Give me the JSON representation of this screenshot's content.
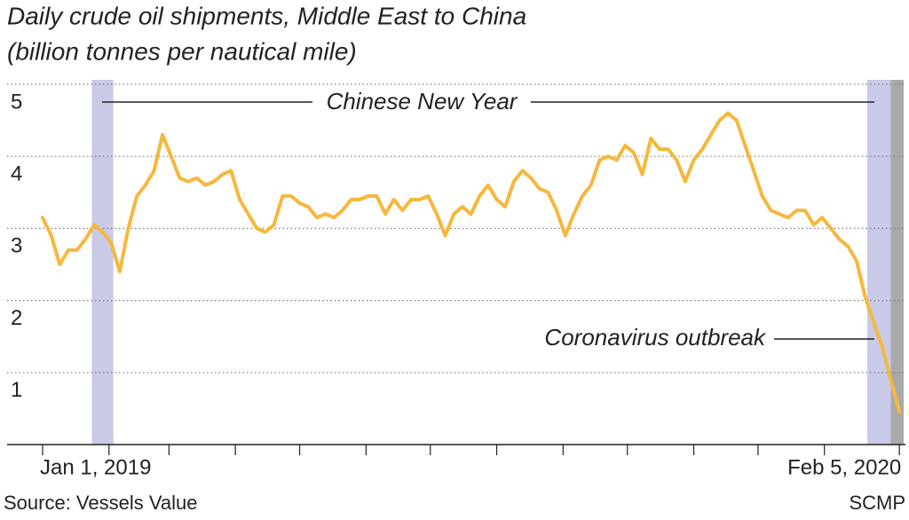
{
  "chart_data": {
    "type": "line",
    "title": "Daily crude oil shipments, Middle East to China",
    "subtitle": "(billion tonnes per nautical mile)",
    "source": "Source: Vessels Value",
    "credit": "SCMP",
    "color": "#f5b83d",
    "grid": true,
    "ylim": [
      0,
      5
    ],
    "yticks": [
      1,
      2,
      3,
      4,
      5
    ],
    "xlim": [
      "2019-01-01",
      "2020-02-07"
    ],
    "xticks": [
      {
        "value": "2019-01-01",
        "label": "Jan 1, 2019"
      },
      {
        "value": "2019-02-01"
      },
      {
        "value": "2019-03-01"
      },
      {
        "value": "2019-04-01"
      },
      {
        "value": "2019-05-01"
      },
      {
        "value": "2019-06-01"
      },
      {
        "value": "2019-07-01"
      },
      {
        "value": "2019-08-01"
      },
      {
        "value": "2019-09-01"
      },
      {
        "value": "2019-10-01"
      },
      {
        "value": "2019-11-01"
      },
      {
        "value": "2019-12-01"
      },
      {
        "value": "2020-01-01"
      },
      {
        "value": "2020-02-05",
        "label": "Feb 5, 2020"
      }
    ],
    "highlights": [
      {
        "start": "2019-01-24",
        "end": "2019-02-03",
        "color": "#c9c9e8"
      },
      {
        "start": "2020-01-21",
        "end": "2020-02-01",
        "color": "#c9c9e8"
      },
      {
        "start": "2020-02-01",
        "end": "2020-02-07",
        "color": "#a9a9a9"
      }
    ],
    "annotations": [
      "Chinese New Year",
      "Coronavirus outbreak"
    ],
    "x": [
      "2019-01-01",
      "2019-01-05",
      "2019-01-09",
      "2019-01-13",
      "2019-01-17",
      "2019-01-21",
      "2019-01-25",
      "2019-01-29",
      "2019-02-02",
      "2019-02-06",
      "2019-02-10",
      "2019-02-14",
      "2019-02-18",
      "2019-02-22",
      "2019-02-26",
      "2019-03-02",
      "2019-03-06",
      "2019-03-10",
      "2019-03-14",
      "2019-03-18",
      "2019-03-22",
      "2019-03-26",
      "2019-03-30",
      "2019-04-03",
      "2019-04-07",
      "2019-04-11",
      "2019-04-15",
      "2019-04-19",
      "2019-04-23",
      "2019-04-27",
      "2019-05-01",
      "2019-05-05",
      "2019-05-09",
      "2019-05-13",
      "2019-05-17",
      "2019-05-21",
      "2019-05-25",
      "2019-05-29",
      "2019-06-02",
      "2019-06-06",
      "2019-06-10",
      "2019-06-14",
      "2019-06-18",
      "2019-06-22",
      "2019-06-26",
      "2019-06-30",
      "2019-07-04",
      "2019-07-08",
      "2019-07-12",
      "2019-07-16",
      "2019-07-20",
      "2019-07-24",
      "2019-07-28",
      "2019-08-01",
      "2019-08-05",
      "2019-08-09",
      "2019-08-13",
      "2019-08-17",
      "2019-08-21",
      "2019-08-25",
      "2019-08-29",
      "2019-09-02",
      "2019-09-06",
      "2019-09-10",
      "2019-09-14",
      "2019-09-18",
      "2019-09-22",
      "2019-09-26",
      "2019-09-30",
      "2019-10-04",
      "2019-10-08",
      "2019-10-12",
      "2019-10-16",
      "2019-10-20",
      "2019-10-24",
      "2019-10-28",
      "2019-11-01",
      "2019-11-05",
      "2019-11-09",
      "2019-11-13",
      "2019-11-17",
      "2019-11-21",
      "2019-11-25",
      "2019-11-29",
      "2019-12-03",
      "2019-12-07",
      "2019-12-11",
      "2019-12-15",
      "2019-12-19",
      "2019-12-23",
      "2019-12-27",
      "2019-12-31",
      "2020-01-04",
      "2020-01-08",
      "2020-01-12",
      "2020-01-16",
      "2020-01-20",
      "2020-01-24",
      "2020-01-28",
      "2020-02-01",
      "2020-02-05"
    ],
    "values": [
      3.15,
      2.9,
      2.5,
      2.7,
      2.7,
      2.85,
      3.05,
      2.95,
      2.8,
      2.4,
      3.0,
      3.45,
      3.6,
      3.8,
      4.3,
      4.0,
      3.7,
      3.65,
      3.7,
      3.6,
      3.65,
      3.75,
      3.8,
      3.4,
      3.2,
      3.0,
      2.95,
      3.05,
      3.45,
      3.45,
      3.35,
      3.3,
      3.15,
      3.2,
      3.15,
      3.25,
      3.4,
      3.4,
      3.45,
      3.45,
      3.2,
      3.4,
      3.25,
      3.4,
      3.4,
      3.45,
      3.2,
      2.9,
      3.2,
      3.3,
      3.2,
      3.45,
      3.6,
      3.4,
      3.3,
      3.65,
      3.8,
      3.7,
      3.55,
      3.5,
      3.25,
      2.9,
      3.2,
      3.45,
      3.6,
      3.95,
      4.0,
      3.95,
      4.15,
      4.05,
      3.75,
      4.25,
      4.1,
      4.1,
      3.95,
      3.65,
      3.95,
      4.1,
      4.3,
      4.5,
      4.6,
      4.5,
      4.15,
      3.8,
      3.45,
      3.25,
      3.2,
      3.15,
      3.25,
      3.25,
      3.05,
      3.15,
      3.0,
      2.85,
      2.75,
      2.55,
      2.05,
      1.7,
      1.35,
      0.9,
      0.45
    ]
  }
}
